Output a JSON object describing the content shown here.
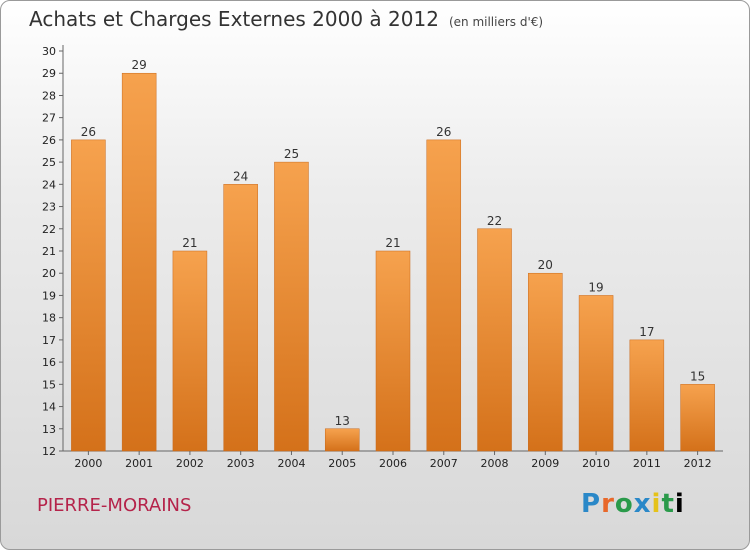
{
  "header": {
    "title": "Achats et Charges Externes 2000 à 2012",
    "subtitle": "(en milliers d'€)"
  },
  "footer": {
    "commune": "PIERRE-MORAINS",
    "logo_text": "Proxiti"
  },
  "colors": {
    "bar_top": "#f6a24e",
    "bar_bottom": "#d4711a",
    "commune_text": "#b5234a"
  },
  "chart_data": {
    "type": "bar",
    "title": "Achats et Charges Externes 2000 à 2012",
    "subtitle": "(en milliers d'€)",
    "categories": [
      "2000",
      "2001",
      "2002",
      "2003",
      "2004",
      "2005",
      "2006",
      "2007",
      "2008",
      "2009",
      "2010",
      "2011",
      "2012"
    ],
    "values": [
      26,
      29,
      21,
      24,
      25,
      13,
      21,
      26,
      22,
      20,
      19,
      17,
      15
    ],
    "ylim": [
      12,
      30
    ],
    "yticks": [
      12,
      13,
      14,
      15,
      16,
      17,
      18,
      19,
      20,
      21,
      22,
      23,
      24,
      25,
      26,
      27,
      28,
      29,
      30
    ],
    "grid": false,
    "legend": "none"
  }
}
